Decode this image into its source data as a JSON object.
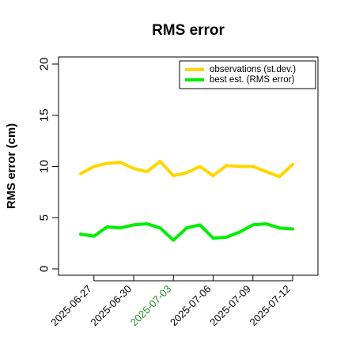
{
  "chart_data": {
    "type": "line",
    "title": "RMS error",
    "ylabel": "RMS error (cm)",
    "xlabel": "",
    "ylim": [
      0,
      20
    ],
    "yticks": [
      0,
      5,
      10,
      15,
      20
    ],
    "x": [
      "2025-06-26",
      "2025-06-27",
      "2025-06-28",
      "2025-06-29",
      "2025-06-30",
      "2025-07-01",
      "2025-07-02",
      "2025-07-03",
      "2025-07-04",
      "2025-07-05",
      "2025-07-06",
      "2025-07-07",
      "2025-07-08",
      "2025-07-09",
      "2025-07-10",
      "2025-07-11",
      "2025-07-12"
    ],
    "xtick_labels": [
      "2025-06-27",
      "2025-06-30",
      "2025-07-03",
      "2025-07-06",
      "2025-07-09",
      "2025-07-12"
    ],
    "xtick_colors": [
      "#000000",
      "#000000",
      "#228B22",
      "#000000",
      "#000000",
      "#000000"
    ],
    "series": [
      {
        "name": "observations (st.dev.)",
        "color": "#FFD700",
        "values": [
          9.3,
          10.0,
          10.3,
          10.4,
          9.8,
          9.5,
          10.5,
          9.1,
          9.4,
          10.0,
          9.1,
          10.1,
          10.0,
          10.0,
          9.5,
          9.0,
          10.2
        ]
      },
      {
        "name": "best est. (RMS error)",
        "color": "#00EE00",
        "values": [
          3.4,
          3.2,
          4.1,
          4.0,
          4.3,
          4.4,
          4.0,
          2.8,
          4.0,
          4.3,
          3.0,
          3.1,
          3.6,
          4.3,
          4.4,
          4.0,
          3.9
        ]
      }
    ],
    "legend_position": "top-right",
    "grid": false
  }
}
